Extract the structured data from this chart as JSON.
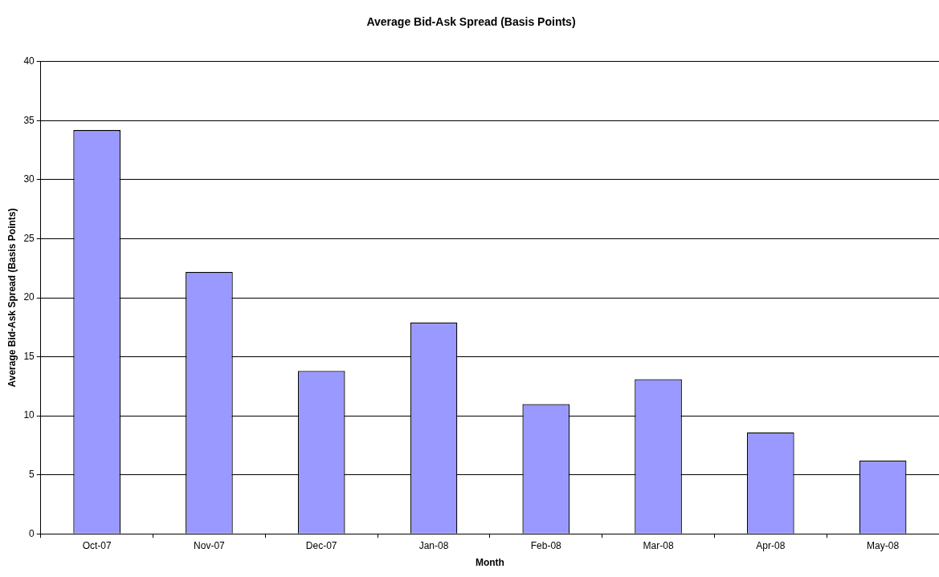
{
  "chart_data": {
    "type": "bar",
    "title": "Average Bid-Ask Spread (Basis Points)",
    "xlabel": "Month",
    "ylabel": "Average Bid-Ask Spread (Basis Points)",
    "categories": [
      "Oct-07",
      "Nov-07",
      "Dec-07",
      "Jan-08",
      "Feb-08",
      "Mar-08",
      "Apr-08",
      "May-08"
    ],
    "values": [
      34.2,
      22.2,
      13.8,
      17.9,
      11.0,
      13.1,
      8.6,
      6.2
    ],
    "color": "#9999ff",
    "ylim": [
      0,
      40
    ],
    "yticks": [
      0,
      5,
      10,
      15,
      20,
      25,
      30,
      35,
      40
    ],
    "grid": "y",
    "legend": false
  }
}
